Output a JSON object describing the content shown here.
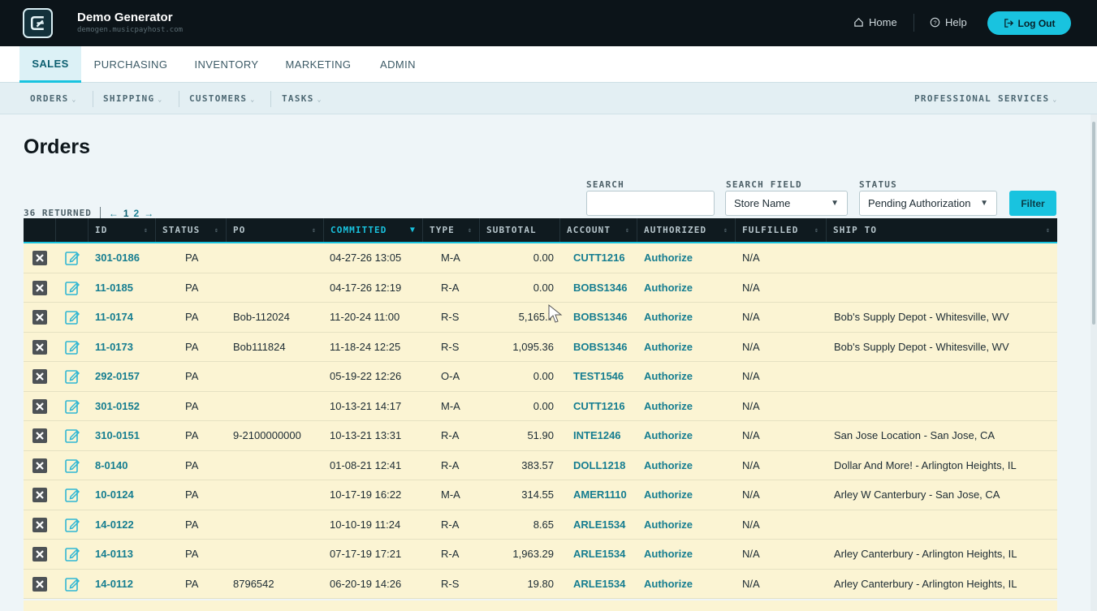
{
  "app": {
    "title": "Demo Generator",
    "host": "demogen.musicpayhost.com"
  },
  "topnav": {
    "home": "Home",
    "help": "Help",
    "logout": "Log Out"
  },
  "tabs": [
    "SALES",
    "PURCHASING",
    "INVENTORY",
    "MARKETING",
    "ADMIN"
  ],
  "subnav": {
    "left": [
      "ORDERS",
      "SHIPPING",
      "CUSTOMERS",
      "TASKS"
    ],
    "right": "PROFESSIONAL SERVICES"
  },
  "page": {
    "title": "Orders"
  },
  "filters": {
    "search_label": "SEARCH",
    "search_value": "",
    "field_label": "SEARCH FIELD",
    "field_value": "Store Name",
    "status_label": "STATUS",
    "status_value": "Pending Authorization",
    "button": "Filter"
  },
  "results": {
    "returned": "36 RETURNED",
    "prev": "←",
    "pages": [
      "1",
      "2"
    ],
    "next": "→"
  },
  "table": {
    "columns": [
      "ID",
      "STATUS",
      "PO",
      "COMMITTED",
      "TYPE",
      "SUBTOTAL",
      "ACCOUNT",
      "AUTHORIZED",
      "FULFILLED",
      "SHIP TO"
    ],
    "rows": [
      {
        "id": "301-0186",
        "status": "PA",
        "po": "",
        "committed": "04-27-26 13:05",
        "type": "M-A",
        "subtotal": "0.00",
        "account": "CUTT1216",
        "authorized": "Authorize",
        "fulfilled": "N/A",
        "ship_to": ""
      },
      {
        "id": "11-0185",
        "status": "PA",
        "po": "",
        "committed": "04-17-26 12:19",
        "type": "R-A",
        "subtotal": "0.00",
        "account": "BOBS1346",
        "authorized": "Authorize",
        "fulfilled": "N/A",
        "ship_to": ""
      },
      {
        "id": "11-0174",
        "status": "PA",
        "po": "Bob-112024",
        "committed": "11-20-24 11:00",
        "type": "R-S",
        "subtotal": "5,165.7",
        "account": "BOBS1346",
        "authorized": "Authorize",
        "fulfilled": "N/A",
        "ship_to": "Bob's Supply Depot - Whitesville, WV"
      },
      {
        "id": "11-0173",
        "status": "PA",
        "po": "Bob111824",
        "committed": "11-18-24 12:25",
        "type": "R-S",
        "subtotal": "1,095.36",
        "account": "BOBS1346",
        "authorized": "Authorize",
        "fulfilled": "N/A",
        "ship_to": "Bob's Supply Depot - Whitesville, WV"
      },
      {
        "id": "292-0157",
        "status": "PA",
        "po": "",
        "committed": "05-19-22 12:26",
        "type": "O-A",
        "subtotal": "0.00",
        "account": "TEST1546",
        "authorized": "Authorize",
        "fulfilled": "N/A",
        "ship_to": ""
      },
      {
        "id": "301-0152",
        "status": "PA",
        "po": "",
        "committed": "10-13-21 14:17",
        "type": "M-A",
        "subtotal": "0.00",
        "account": "CUTT1216",
        "authorized": "Authorize",
        "fulfilled": "N/A",
        "ship_to": ""
      },
      {
        "id": "310-0151",
        "status": "PA",
        "po": "9-2100000000",
        "committed": "10-13-21 13:31",
        "type": "R-A",
        "subtotal": "51.90",
        "account": "INTE1246",
        "authorized": "Authorize",
        "fulfilled": "N/A",
        "ship_to": "San Jose Location - San Jose, CA"
      },
      {
        "id": "8-0140",
        "status": "PA",
        "po": "",
        "committed": "01-08-21 12:41",
        "type": "R-A",
        "subtotal": "383.57",
        "account": "DOLL1218",
        "authorized": "Authorize",
        "fulfilled": "N/A",
        "ship_to": "Dollar And More! - Arlington Heights, IL"
      },
      {
        "id": "10-0124",
        "status": "PA",
        "po": "",
        "committed": "10-17-19 16:22",
        "type": "M-A",
        "subtotal": "314.55",
        "account": "AMER1110",
        "authorized": "Authorize",
        "fulfilled": "N/A",
        "ship_to": "Arley W Canterbury - San Jose, CA"
      },
      {
        "id": "14-0122",
        "status": "PA",
        "po": "",
        "committed": "10-10-19 11:24",
        "type": "R-A",
        "subtotal": "8.65",
        "account": "ARLE1534",
        "authorized": "Authorize",
        "fulfilled": "N/A",
        "ship_to": ""
      },
      {
        "id": "14-0113",
        "status": "PA",
        "po": "",
        "committed": "07-17-19 17:21",
        "type": "R-A",
        "subtotal": "1,963.29",
        "account": "ARLE1534",
        "authorized": "Authorize",
        "fulfilled": "N/A",
        "ship_to": "Arley Canterbury - Arlington Heights, IL"
      },
      {
        "id": "14-0112",
        "status": "PA",
        "po": "8796542",
        "committed": "06-20-19 14:26",
        "type": "R-S",
        "subtotal": "19.80",
        "account": "ARLE1534",
        "authorized": "Authorize",
        "fulfilled": "N/A",
        "ship_to": "Arley Canterbury - Arlington Heights, IL"
      }
    ]
  },
  "colors": {
    "accent": "#19c3df",
    "header_bg": "#0c1419",
    "row_bg": "#fbf4d3",
    "link": "#157d90"
  }
}
